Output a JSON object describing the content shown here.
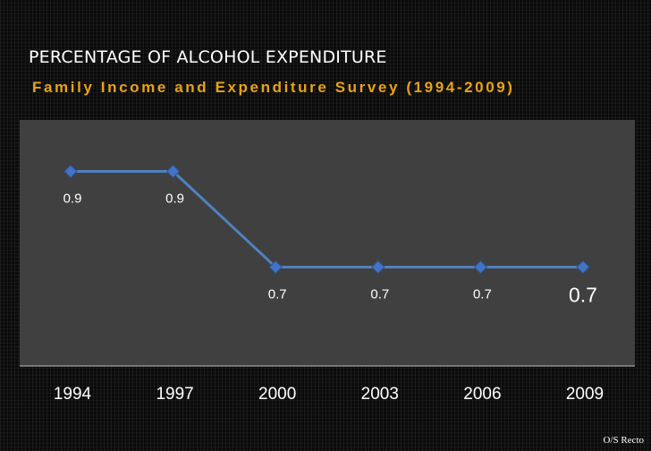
{
  "header": {
    "title": "PERCENTAGE OF ALCOHOL EXPENDITURE",
    "subtitle": "Family Income and Expenditure Survey (1994-2009)"
  },
  "footer": {
    "credit": "O/S Recto"
  },
  "colors": {
    "background": "#0b0b0b",
    "plot_area": "#404040",
    "line": "#4f81bd",
    "marker": "#4472c4",
    "title": "#ffffff",
    "subtitle": "#e8a317",
    "label": "#ffffff"
  },
  "chart_data": {
    "type": "line",
    "categories": [
      "1994",
      "1997",
      "2000",
      "2003",
      "2006",
      "2009"
    ],
    "values": [
      0.9,
      0.9,
      0.7,
      0.7,
      0.7,
      0.7
    ],
    "data_labels": [
      "0.9",
      "0.9",
      "0.7",
      "0.7",
      "0.7",
      "0.7"
    ],
    "title": "",
    "xlabel": "",
    "ylabel": "",
    "ylim": [
      0.5,
      1.0
    ],
    "grid": false,
    "legend": "none",
    "marker": "diamond"
  }
}
